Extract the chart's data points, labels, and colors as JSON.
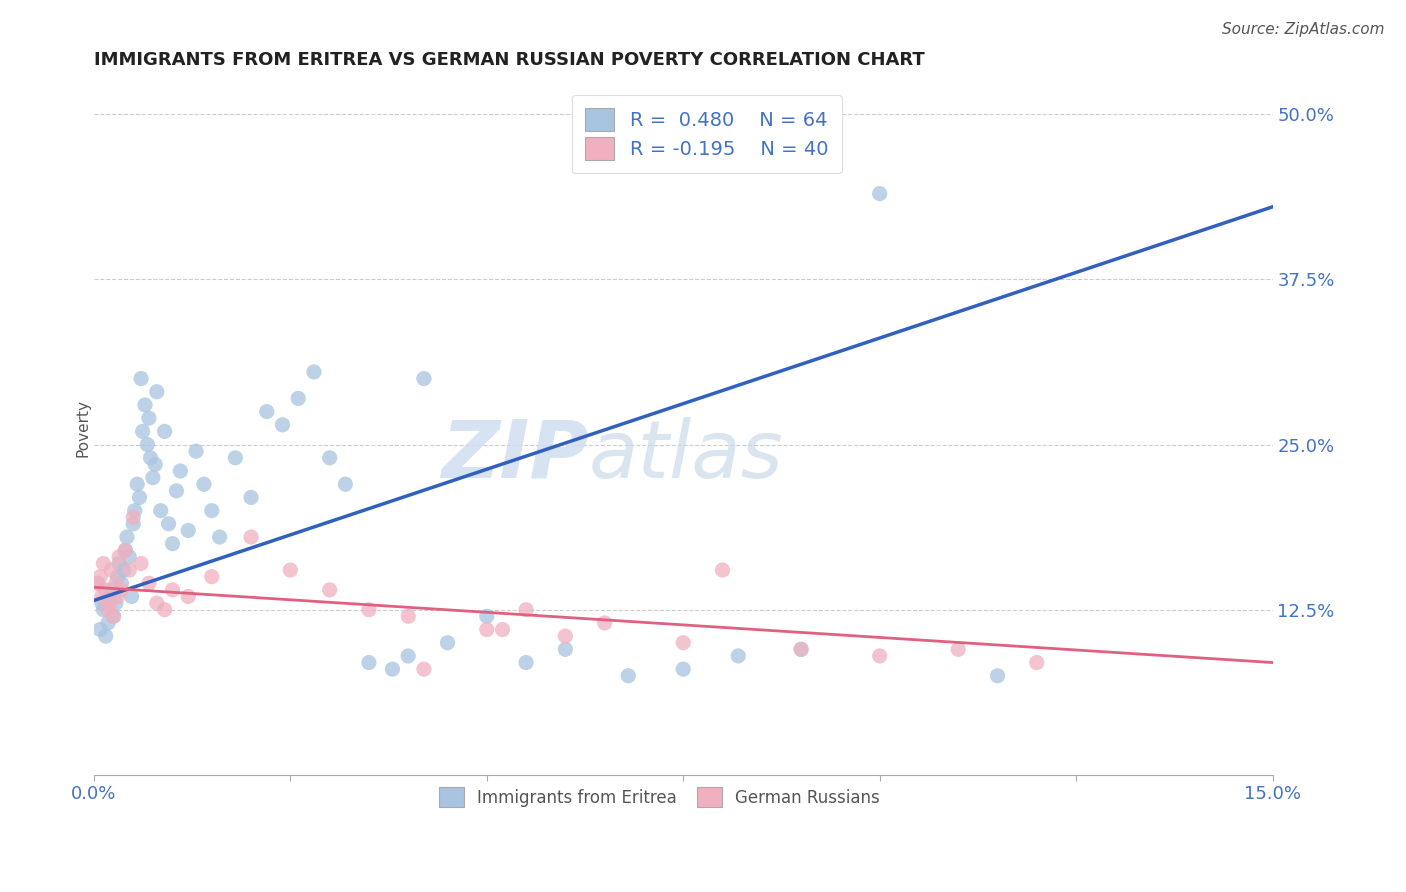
{
  "title": "IMMIGRANTS FROM ERITREA VS GERMAN RUSSIAN POVERTY CORRELATION CHART",
  "source": "Source: ZipAtlas.com",
  "ylabel": "Poverty",
  "xlim": [
    0.0,
    15.0
  ],
  "ylim": [
    0.0,
    52.5
  ],
  "yticks": [
    0,
    12.5,
    25.0,
    37.5,
    50.0
  ],
  "ytick_labels": [
    "",
    "12.5%",
    "25.0%",
    "37.5%",
    "50.0%"
  ],
  "xticks": [
    0.0,
    2.5,
    5.0,
    7.5,
    10.0,
    12.5,
    15.0
  ],
  "xtick_labels": [
    "0.0%",
    "",
    "",
    "",
    "",
    "",
    "15.0%"
  ],
  "blue_color": "#a8c4e0",
  "pink_color": "#f0b0c0",
  "blue_line_color": "#3060c0",
  "pink_line_color": "#e06080",
  "legend_blue_label": "R =  0.480    N = 64",
  "legend_pink_label": "R = -0.195    N = 40",
  "legend_blue_series": "Immigrants from Eritrea",
  "legend_pink_series": "German Russians",
  "watermark_text": "ZIP",
  "watermark_text2": "atlas",
  "blue_trend_x": [
    0.0,
    15.0
  ],
  "blue_trend_y": [
    13.2,
    43.0
  ],
  "pink_trend_x": [
    0.0,
    15.0
  ],
  "pink_trend_y": [
    14.2,
    8.5
  ],
  "blue_scatter_x": [
    0.05,
    0.08,
    0.1,
    0.12,
    0.15,
    0.18,
    0.2,
    0.22,
    0.25,
    0.28,
    0.3,
    0.32,
    0.35,
    0.38,
    0.4,
    0.42,
    0.45,
    0.48,
    0.5,
    0.52,
    0.55,
    0.58,
    0.6,
    0.62,
    0.65,
    0.68,
    0.7,
    0.72,
    0.75,
    0.78,
    0.8,
    0.85,
    0.9,
    0.95,
    1.0,
    1.05,
    1.1,
    1.2,
    1.3,
    1.4,
    1.5,
    1.6,
    1.8,
    2.0,
    2.2,
    2.4,
    2.6,
    2.8,
    3.0,
    3.2,
    3.5,
    3.8,
    4.0,
    4.5,
    5.0,
    5.5,
    6.0,
    6.8,
    7.5,
    8.2,
    9.0,
    10.0,
    11.5,
    4.2
  ],
  "blue_scatter_y": [
    14.5,
    11.0,
    13.0,
    12.5,
    10.5,
    11.5,
    13.5,
    14.0,
    12.0,
    13.0,
    15.0,
    16.0,
    14.5,
    15.5,
    17.0,
    18.0,
    16.5,
    13.5,
    19.0,
    20.0,
    22.0,
    21.0,
    30.0,
    26.0,
    28.0,
    25.0,
    27.0,
    24.0,
    22.5,
    23.5,
    29.0,
    20.0,
    26.0,
    19.0,
    17.5,
    21.5,
    23.0,
    18.5,
    24.5,
    22.0,
    20.0,
    18.0,
    24.0,
    21.0,
    27.5,
    26.5,
    28.5,
    30.5,
    24.0,
    22.0,
    8.5,
    8.0,
    9.0,
    10.0,
    12.0,
    8.5,
    9.5,
    7.5,
    8.0,
    9.0,
    9.5,
    44.0,
    7.5,
    30.0
  ],
  "pink_scatter_x": [
    0.05,
    0.08,
    0.1,
    0.12,
    0.15,
    0.18,
    0.2,
    0.22,
    0.25,
    0.28,
    0.3,
    0.32,
    0.35,
    0.4,
    0.45,
    0.5,
    0.6,
    0.7,
    0.8,
    0.9,
    1.0,
    1.2,
    1.5,
    2.0,
    2.5,
    3.0,
    3.5,
    4.0,
    5.0,
    5.5,
    6.0,
    6.5,
    7.5,
    8.0,
    9.0,
    10.0,
    11.0,
    12.0,
    4.2,
    5.2
  ],
  "pink_scatter_y": [
    14.5,
    15.0,
    13.5,
    16.0,
    14.0,
    12.5,
    13.0,
    15.5,
    12.0,
    14.5,
    13.5,
    16.5,
    14.0,
    17.0,
    15.5,
    19.5,
    16.0,
    14.5,
    13.0,
    12.5,
    14.0,
    13.5,
    15.0,
    18.0,
    15.5,
    14.0,
    12.5,
    12.0,
    11.0,
    12.5,
    10.5,
    11.5,
    10.0,
    15.5,
    9.5,
    9.0,
    9.5,
    8.5,
    8.0,
    11.0
  ]
}
